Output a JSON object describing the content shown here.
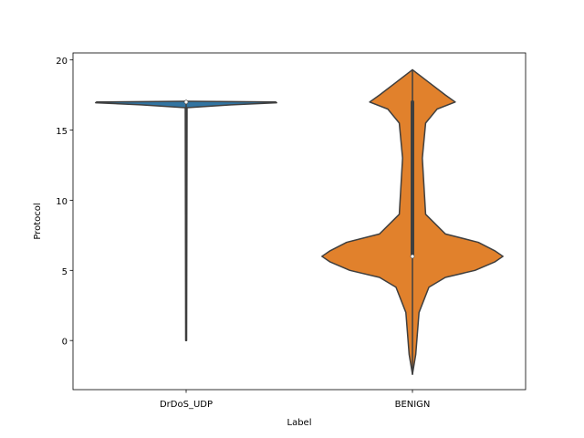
{
  "chart_data": {
    "type": "violin",
    "title": "",
    "xlabel": "Label",
    "ylabel": "Protocol",
    "ylim": [
      -3.5,
      20.5
    ],
    "yticks": [
      0,
      5,
      10,
      15,
      20
    ],
    "grid": false,
    "legend": "none",
    "categories": [
      "DrDoS_UDP",
      "BENIGN"
    ],
    "violins": [
      {
        "category": "DrDoS_UDP",
        "fill": "#3274a1",
        "outline": "#3f3f3f",
        "median": 17,
        "q1": 17,
        "q3": 17,
        "whisker_low": 0,
        "whisker_high": 17,
        "min": 0,
        "max": 17,
        "density": [
          [
            0,
            0.005
          ],
          [
            16.6,
            0.01
          ],
          [
            16.8,
            0.5
          ],
          [
            16.95,
            1.0
          ],
          [
            17.0,
            0.99
          ],
          [
            17.05,
            0.02
          ],
          [
            17.1,
            0.0
          ]
        ]
      },
      {
        "category": "BENIGN",
        "fill": "#e1812c",
        "outline": "#3f3f3f",
        "median": 6,
        "q1": 6,
        "q3": 17,
        "whisker_low": -2.4,
        "whisker_high": 19.3,
        "min": -2.4,
        "max": 19.3,
        "density": [
          [
            -2.4,
            0.0
          ],
          [
            -1.0,
            0.002
          ],
          [
            2.0,
            0.004
          ],
          [
            3.8,
            0.01
          ],
          [
            4.5,
            0.02
          ],
          [
            5.0,
            0.038
          ],
          [
            5.6,
            0.05
          ],
          [
            6.0,
            0.055
          ],
          [
            6.4,
            0.05
          ],
          [
            7.0,
            0.04
          ],
          [
            7.6,
            0.02
          ],
          [
            9.0,
            0.008
          ],
          [
            13.0,
            0.006
          ],
          [
            15.5,
            0.008
          ],
          [
            16.5,
            0.015
          ],
          [
            17.0,
            0.026
          ],
          [
            17.5,
            0.02
          ],
          [
            18.4,
            0.01
          ],
          [
            19.3,
            0.0
          ]
        ]
      }
    ]
  }
}
